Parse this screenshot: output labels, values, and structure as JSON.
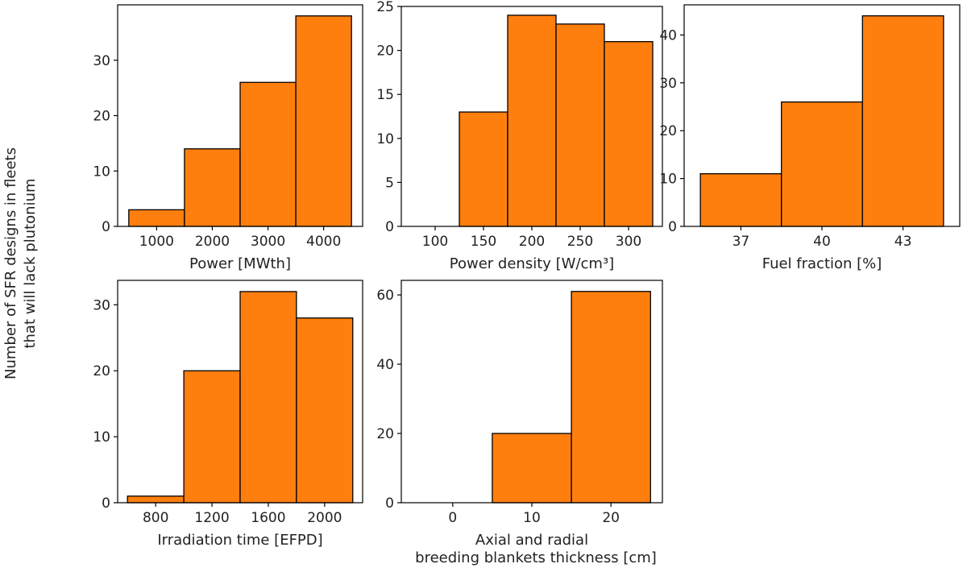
{
  "figure": {
    "ylabel_line1": "Number of SFR designs in fleets",
    "ylabel_line2": "that will lack plutonium"
  },
  "colors": {
    "bar_fill": "#ff7f0e",
    "bar_edge": "#000000",
    "axis": "#000000"
  },
  "chart_data": [
    {
      "type": "bar",
      "title": "",
      "xlabel": "Power [MWth]",
      "bins": [
        [
          500,
          1500
        ],
        [
          1500,
          2500
        ],
        [
          2500,
          3500
        ],
        [
          3500,
          4500
        ]
      ],
      "values": [
        3,
        14,
        26,
        38
      ],
      "xlim": [
        300,
        4700
      ],
      "ylim": [
        0,
        40
      ],
      "xticks": [
        1000,
        2000,
        3000,
        4000
      ],
      "yticks": [
        0,
        10,
        20,
        30
      ]
    },
    {
      "type": "bar",
      "title": "",
      "xlabel": "Power density [W/cm³]",
      "bins": [
        [
          75,
          125
        ],
        [
          125,
          175
        ],
        [
          175,
          225
        ],
        [
          225,
          275
        ],
        [
          275,
          325
        ]
      ],
      "values": [
        0,
        13,
        24,
        23,
        21
      ],
      "xlim": [
        65,
        335
      ],
      "ylim": [
        0,
        25
      ],
      "xticks": [
        100,
        150,
        200,
        250,
        300
      ],
      "yticks": [
        0,
        5,
        10,
        15,
        20,
        25
      ]
    },
    {
      "type": "bar",
      "title": "",
      "xlabel": "Fuel fraction [%]",
      "bins": [
        [
          35.5,
          38.5
        ],
        [
          38.5,
          41.5
        ],
        [
          41.5,
          44.5
        ]
      ],
      "values": [
        11,
        26,
        44
      ],
      "xlim": [
        34.9,
        45.1
      ],
      "ylim": [
        0,
        46.3
      ],
      "xticks": [
        37,
        40,
        43
      ],
      "yticks": [
        0,
        10,
        20,
        30,
        40
      ]
    },
    {
      "type": "bar",
      "title": "",
      "xlabel": "Irradiation time [EFPD]",
      "bins": [
        [
          600,
          1000
        ],
        [
          1000,
          1400
        ],
        [
          1400,
          1800
        ],
        [
          1800,
          2200
        ]
      ],
      "values": [
        1,
        20,
        32,
        28
      ],
      "xlim": [
        530,
        2270
      ],
      "ylim": [
        0,
        33.7
      ],
      "xticks": [
        800,
        1200,
        1600,
        2000
      ],
      "yticks": [
        0,
        10,
        20,
        30
      ]
    },
    {
      "type": "bar",
      "title": "",
      "xlabel": "Axial and radial",
      "xlabel2": "breeding blankets thickness [cm]",
      "bins": [
        [
          -5,
          5
        ],
        [
          5,
          15
        ],
        [
          15,
          25
        ]
      ],
      "values": [
        0,
        20,
        61
      ],
      "xlim": [
        -6.5,
        26.5
      ],
      "ylim": [
        0,
        64.2
      ],
      "xticks": [
        0,
        10,
        20
      ],
      "yticks": [
        0,
        20,
        40,
        60
      ]
    }
  ]
}
